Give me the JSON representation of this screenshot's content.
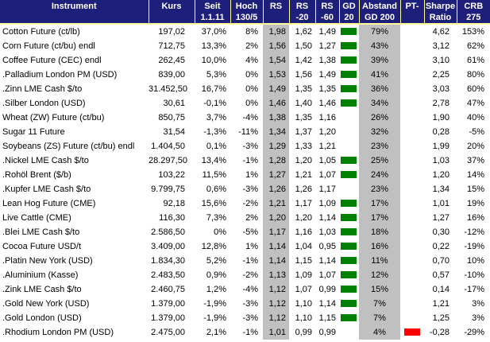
{
  "colors": {
    "header_bg": "#1e1e7b",
    "separator": "#ffff9c",
    "shade": "#c0c0c0",
    "positive": "#008000",
    "negative": "#ff0000",
    "text_dark": "#000000",
    "header_text": "#ffffff"
  },
  "table": {
    "columns": [
      {
        "id": "instrument",
        "label1": "Instrument",
        "label2": ""
      },
      {
        "id": "kurs",
        "label1": "Kurs",
        "label2": ""
      },
      {
        "id": "seit",
        "label1": "Seit",
        "label2": "1.1.11"
      },
      {
        "id": "hoch",
        "label1": "Hoch",
        "label2": "130/5"
      },
      {
        "id": "rs",
        "label1": "RS",
        "label2": ""
      },
      {
        "id": "rs20",
        "label1": "RS",
        "label2": "-20"
      },
      {
        "id": "rs60",
        "label1": "RS",
        "label2": "-60"
      },
      {
        "id": "gd20",
        "label1": "GD",
        "label2": "20"
      },
      {
        "id": "abstand",
        "label1": "Abstand",
        "label2": "GD 200"
      },
      {
        "id": "pt",
        "label1": "PT-",
        "label2": ""
      },
      {
        "id": "sharpe",
        "label1": "Sharpe",
        "label2": "Ratio"
      },
      {
        "id": "crb",
        "label1": "CRB",
        "label2": "275"
      }
    ],
    "rows": [
      {
        "instrument": "Cotton Future (ct/lb)",
        "kurs": "197,02",
        "seit": "37,0%",
        "hoch": "8%",
        "rs": "1,98",
        "rs20": "1,62",
        "rs60": "1,49",
        "gd20": true,
        "abstand": "79%",
        "pt": false,
        "sharpe": "4,62",
        "crb": "153%"
      },
      {
        "instrument": "Corn Future (ct/bu) endl",
        "kurs": "712,75",
        "seit": "13,3%",
        "hoch": "2%",
        "rs": "1,56",
        "rs20": "1,50",
        "rs60": "1,27",
        "gd20": true,
        "abstand": "43%",
        "pt": false,
        "sharpe": "3,12",
        "crb": "62%"
      },
      {
        "instrument": "Coffee Future (CEC) endl",
        "kurs": "262,45",
        "seit": "10,0%",
        "hoch": "4%",
        "rs": "1,54",
        "rs20": "1,42",
        "rs60": "1,38",
        "gd20": true,
        "abstand": "39%",
        "pt": false,
        "sharpe": "3,10",
        "crb": "61%"
      },
      {
        "instrument": ".Palladium London PM (USD)",
        "kurs": "839,00",
        "seit": "5,3%",
        "hoch": "0%",
        "rs": "1,53",
        "rs20": "1,56",
        "rs60": "1,49",
        "gd20": true,
        "abstand": "41%",
        "pt": false,
        "sharpe": "2,25",
        "crb": "80%"
      },
      {
        "instrument": ".Zinn LME Cash $/to",
        "kurs": "31.452,50",
        "seit": "16,7%",
        "hoch": "0%",
        "rs": "1,49",
        "rs20": "1,35",
        "rs60": "1,35",
        "gd20": true,
        "abstand": "36%",
        "pt": false,
        "sharpe": "3,03",
        "crb": "60%"
      },
      {
        "instrument": ".Silber London (USD)",
        "kurs": "30,61",
        "seit": "-0,1%",
        "hoch": "0%",
        "rs": "1,46",
        "rs20": "1,40",
        "rs60": "1,46",
        "gd20": true,
        "abstand": "34%",
        "pt": false,
        "sharpe": "2,78",
        "crb": "47%"
      },
      {
        "instrument": "Wheat (ZW) Future (ct/bu)",
        "kurs": "850,75",
        "seit": "3,7%",
        "hoch": "-4%",
        "rs": "1,38",
        "rs20": "1,35",
        "rs60": "1,16",
        "gd20": false,
        "abstand": "26%",
        "pt": false,
        "sharpe": "1,90",
        "crb": "40%"
      },
      {
        "instrument": "Sugar 11 Future",
        "kurs": "31,54",
        "seit": "-1,3%",
        "hoch": "-11%",
        "rs": "1,34",
        "rs20": "1,37",
        "rs60": "1,20",
        "gd20": false,
        "abstand": "32%",
        "pt": false,
        "sharpe": "0,28",
        "crb": "-5%"
      },
      {
        "instrument": "Soybeans (ZS) Future (ct/bu) endl",
        "kurs": "1.404,50",
        "seit": "0,1%",
        "hoch": "-3%",
        "rs": "1,29",
        "rs20": "1,33",
        "rs60": "1,21",
        "gd20": false,
        "abstand": "23%",
        "pt": false,
        "sharpe": "1,99",
        "crb": "20%"
      },
      {
        "instrument": ".Nickel LME Cash $/to",
        "kurs": "28.297,50",
        "seit": "13,4%",
        "hoch": "-1%",
        "rs": "1,28",
        "rs20": "1,20",
        "rs60": "1,05",
        "gd20": true,
        "abstand": "25%",
        "pt": false,
        "sharpe": "1,03",
        "crb": "37%"
      },
      {
        "instrument": ".Rohöl Brent ($/b)",
        "kurs": "103,22",
        "seit": "11,5%",
        "hoch": "1%",
        "rs": "1,27",
        "rs20": "1,21",
        "rs60": "1,07",
        "gd20": true,
        "abstand": "24%",
        "pt": false,
        "sharpe": "1,20",
        "crb": "14%"
      },
      {
        "instrument": ".Kupfer LME Cash $/to",
        "kurs": "9.799,75",
        "seit": "0,6%",
        "hoch": "-3%",
        "rs": "1,26",
        "rs20": "1,26",
        "rs60": "1,17",
        "gd20": false,
        "abstand": "23%",
        "pt": false,
        "sharpe": "1,34",
        "crb": "15%"
      },
      {
        "instrument": "Lean Hog Future (CME)",
        "kurs": "92,18",
        "seit": "15,6%",
        "hoch": "-2%",
        "rs": "1,21",
        "rs20": "1,17",
        "rs60": "1,09",
        "gd20": true,
        "abstand": "17%",
        "pt": false,
        "sharpe": "1,01",
        "crb": "19%"
      },
      {
        "instrument": "Live Cattle (CME)",
        "kurs": "116,30",
        "seit": "7,3%",
        "hoch": "2%",
        "rs": "1,20",
        "rs20": "1,20",
        "rs60": "1,14",
        "gd20": true,
        "abstand": "17%",
        "pt": false,
        "sharpe": "1,27",
        "crb": "16%"
      },
      {
        "instrument": ".Blei LME Cash $/to",
        "kurs": "2.586,50",
        "seit": "0%",
        "hoch": "-5%",
        "rs": "1,17",
        "rs20": "1,16",
        "rs60": "1,03",
        "gd20": true,
        "abstand": "18%",
        "pt": false,
        "sharpe": "0,30",
        "crb": "-12%"
      },
      {
        "instrument": "Cocoa Future USD/t",
        "kurs": "3.409,00",
        "seit": "12,8%",
        "hoch": "1%",
        "rs": "1,14",
        "rs20": "1,04",
        "rs60": "0,95",
        "gd20": true,
        "abstand": "16%",
        "pt": false,
        "sharpe": "0,22",
        "crb": "-19%"
      },
      {
        "instrument": ".Platin New York (USD)",
        "kurs": "1.834,30",
        "seit": "5,2%",
        "hoch": "-1%",
        "rs": "1,14",
        "rs20": "1,15",
        "rs60": "1,14",
        "gd20": true,
        "abstand": "11%",
        "pt": false,
        "sharpe": "0,70",
        "crb": "10%"
      },
      {
        "instrument": ".Aluminium (Kasse)",
        "kurs": "2.483,50",
        "seit": "0,9%",
        "hoch": "-2%",
        "rs": "1,13",
        "rs20": "1,09",
        "rs60": "1,07",
        "gd20": true,
        "abstand": "12%",
        "pt": false,
        "sharpe": "0,57",
        "crb": "-10%"
      },
      {
        "instrument": ".Zink LME Cash $/to",
        "kurs": "2.460,75",
        "seit": "1,2%",
        "hoch": "-4%",
        "rs": "1,12",
        "rs20": "1,07",
        "rs60": "0,99",
        "gd20": true,
        "abstand": "15%",
        "pt": false,
        "sharpe": "0,14",
        "crb": "-17%"
      },
      {
        "instrument": ".Gold New York (USD)",
        "kurs": "1.379,00",
        "seit": "-1,9%",
        "hoch": "-3%",
        "rs": "1,12",
        "rs20": "1,10",
        "rs60": "1,14",
        "gd20": true,
        "abstand": "7%",
        "pt": false,
        "sharpe": "1,21",
        "crb": "3%"
      },
      {
        "instrument": ".Gold London (USD)",
        "kurs": "1.379,00",
        "seit": "-1,9%",
        "hoch": "-3%",
        "rs": "1,12",
        "rs20": "1,10",
        "rs60": "1,15",
        "gd20": true,
        "abstand": "7%",
        "pt": false,
        "sharpe": "1,25",
        "crb": "3%"
      },
      {
        "instrument": ".Rhodium London PM (USD)",
        "kurs": "2.475,00",
        "seit": "2,1%",
        "hoch": "-1%",
        "rs": "1,01",
        "rs20": "0,99",
        "rs60": "0,99",
        "gd20": false,
        "abstand": "4%",
        "pt": true,
        "sharpe": "-0,28",
        "crb": "-29%"
      }
    ]
  }
}
